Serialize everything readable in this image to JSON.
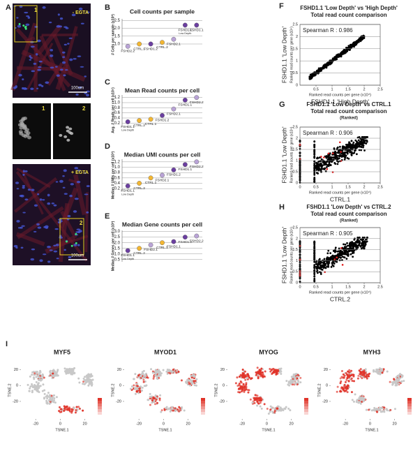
{
  "figure": {
    "panel_labels": [
      "A",
      "B",
      "C",
      "D",
      "E",
      "F",
      "G",
      "H",
      "I"
    ]
  },
  "images": {
    "top_label": "- EGTA",
    "bottom_label": "+ EGTA",
    "scale_bar_top": "100um",
    "scale_bar_bottom": "100um",
    "box_1": "1",
    "box_2": "2",
    "inset_1": "1",
    "inset_2": "2"
  },
  "chart_data": [
    {
      "type": "dot",
      "title": "Cell counts per sample",
      "ylabel": "# Cells per sample (x10³)",
      "categories": [
        "FSHD2.2",
        "CTRL.1",
        "FSHD1.2",
        "CTRL.2",
        "FSHD2.1",
        "FSHD1.1",
        "FSHD1.1"
      ],
      "category_notes": [
        null,
        null,
        null,
        null,
        null,
        "Low Depth",
        null
      ],
      "values": [
        0.85,
        1.0,
        1.0,
        1.1,
        1.3,
        2.2,
        2.2
      ],
      "colors": [
        "#b9a3d6",
        "#f2b632",
        "#6b3fa0",
        "#f2b632",
        "#b9a3d6",
        "#6b3fa0",
        "#6b3fa0"
      ],
      "ylim": [
        0.6,
        2.6
      ],
      "yticks": [
        {
          "value": 1,
          "label": "1.0"
        },
        1.5,
        {
          "value": 2,
          "label": "2.0"
        },
        2.5
      ],
      "grid": true
    },
    {
      "type": "dot",
      "title": "Mean Read counts per cell",
      "ylabel": "Avg. # Reads per cell (x10⁵)",
      "categories": [
        "FSHD1.1",
        "CTRL.2",
        "CTRL.1",
        "FSHD1.2",
        "FSHD2.1",
        "FSHD1.1",
        "FSHD2.2"
      ],
      "category_notes": [
        "Low Depth",
        null,
        null,
        null,
        null,
        null,
        null
      ],
      "values": [
        0.25,
        0.3,
        0.35,
        0.5,
        0.75,
        1.1,
        1.2
      ],
      "colors": [
        "#6b3fa0",
        "#f2b632",
        "#f2b632",
        "#6b3fa0",
        "#b9a3d6",
        "#6b3fa0",
        "#b9a3d6"
      ],
      "ylim": [
        0.1,
        1.3
      ],
      "yticks": [
        0.2,
        0.4,
        0.6,
        0.8,
        {
          "value": 1,
          "label": "1.0"
        },
        1.2
      ],
      "grid": true
    },
    {
      "type": "dot",
      "title": "Median UMI counts per cell",
      "ylabel": "Median # UMIs per cell (x10³)",
      "categories": [
        "FSHD1.1",
        "CTRL.2",
        "CTRL.1",
        "FSHD2.1",
        "FSHD1.2",
        "FSHD1.1",
        "FSHD2.2"
      ],
      "category_notes": [
        "Low Depth",
        null,
        null,
        null,
        null,
        null,
        null
      ],
      "values": [
        0.3,
        0.4,
        0.6,
        0.7,
        0.9,
        1.1,
        1.2
      ],
      "colors": [
        "#6b3fa0",
        "#f2b632",
        "#f2b632",
        "#b9a3d6",
        "#6b3fa0",
        "#6b3fa0",
        "#b9a3d6"
      ],
      "ylim": [
        0.1,
        1.3
      ],
      "yticks": [
        0.2,
        0.4,
        0.6,
        0.8,
        {
          "value": 1,
          "label": "1.0"
        },
        1.2
      ],
      "grid": true
    },
    {
      "type": "dot",
      "title": "Median Gene counts per cell",
      "ylabel": "Median # Genes per cell (x10³)",
      "categories": [
        "FSHD1.1",
        "CTRL.2",
        "FSHD2.1",
        "CTRL.1",
        "FSHD1.1",
        "FSHD1.2",
        "FSHD2.2"
      ],
      "category_notes": [
        "Low Depth",
        null,
        null,
        null,
        null,
        null,
        null
      ],
      "values": [
        1.3,
        1.5,
        1.8,
        2.0,
        2.1,
        2.5,
        2.6
      ],
      "colors": [
        "#6b3fa0",
        "#f2b632",
        "#b9a3d6",
        "#f2b632",
        "#6b3fa0",
        "#6b3fa0",
        "#b9a3d6"
      ],
      "ylim": [
        0.3,
        3.1
      ],
      "yticks": [
        0.5,
        {
          "value": 1,
          "label": "1.0"
        },
        1.5,
        {
          "value": 2,
          "label": "2.0"
        },
        2.5,
        {
          "value": 3,
          "label": "3.0"
        }
      ],
      "grid": true
    },
    {
      "type": "scatter",
      "title": "FSHD1.1 'Low Depth' vs 'High Depth'",
      "subtitle": "Total read count comparison",
      "annotation": "Spearman R : 0.986",
      "xlabel": "Ranked read counts per gene (x10⁴)",
      "xname": "FSHD1.1 'High Depth'",
      "ylabel": "Ranked read counts per gene (x10⁴)",
      "yname": "FSHD1.1 'Low Depth'",
      "xlim": [
        0,
        2.5
      ],
      "ylim": [
        0,
        2.5
      ],
      "xticks": [
        0.5,
        1,
        1.5,
        2,
        2.5
      ],
      "yticks": [
        0,
        0.5,
        1,
        1.5,
        2,
        2.5
      ],
      "grid": true
    },
    {
      "type": "scatter",
      "title": "FSHD1.1 'Low Depth' vs CTRL.1",
      "subtitle": "Total read count comparison",
      "note": "(Ranked)",
      "annotation": "Spearman R : 0.906",
      "xlabel": "Ranked read counts per gene (x10⁴)",
      "xname": "CTRL.1",
      "ylabel": "Ranked read counts per gene (x10⁴)",
      "yname": "FSHD1.1 'Low Depth'",
      "xlim": [
        0,
        2.5
      ],
      "ylim": [
        0,
        2.5
      ],
      "xticks": [
        0,
        0.5,
        1,
        1.5,
        2,
        2.5
      ],
      "yticks": [
        0,
        0.5,
        1,
        1.5,
        2,
        2.5
      ],
      "grid": true
    },
    {
      "type": "scatter",
      "title": "FSHD1.1 'Low Depth' vs CTRL.2",
      "subtitle": "Total read count comparison",
      "note": "(Ranked)",
      "annotation": "Spearman R : 0.905",
      "xlabel": "Ranked read counts per gene (x10⁴)",
      "xname": "CTRL.2",
      "ylabel": "Ranked read counts per gene (x10⁴)",
      "yname": "FSHD1.1 'Low Depth'",
      "xlim": [
        0,
        2.5
      ],
      "ylim": [
        0,
        2.5
      ],
      "xticks": [
        0,
        0.5,
        1,
        1.5,
        2,
        2.5
      ],
      "yticks": [
        0,
        0.5,
        1,
        1.5,
        2,
        2.5
      ],
      "grid": true
    },
    {
      "type": "tsne",
      "title": "MYF5",
      "xlabel": "TSNE.1",
      "ylabel": "TSNE.2",
      "xlim": [
        -32,
        35
      ],
      "ylim": [
        -42,
        30
      ],
      "xticks": [
        -20,
        0,
        20
      ],
      "yticks": [
        -20,
        0,
        20
      ],
      "color": "#e0342a"
    },
    {
      "type": "tsne",
      "title": "MYOD1",
      "xlabel": "TSNE.1",
      "ylabel": "TSNE.2",
      "xlim": [
        -32,
        35
      ],
      "ylim": [
        -42,
        30
      ],
      "xticks": [
        -20,
        0,
        20
      ],
      "yticks": [
        -20,
        0,
        20
      ],
      "color": "#e0342a"
    },
    {
      "type": "tsne",
      "title": "MYOG",
      "xlabel": "TSNE.1",
      "ylabel": "TSNE.2",
      "xlim": [
        -32,
        35
      ],
      "ylim": [
        -42,
        30
      ],
      "xticks": [
        -20,
        0,
        20
      ],
      "yticks": [
        -20,
        0,
        20
      ],
      "color": "#e0342a"
    },
    {
      "type": "tsne",
      "title": "MYH3",
      "xlabel": "TSNE.1",
      "ylabel": "TSNE.2",
      "xlim": [
        -32,
        35
      ],
      "ylim": [
        -42,
        30
      ],
      "xticks": [
        -20,
        0,
        20
      ],
      "yticks": [
        -20,
        0,
        20
      ],
      "color": "#e0342a"
    }
  ]
}
